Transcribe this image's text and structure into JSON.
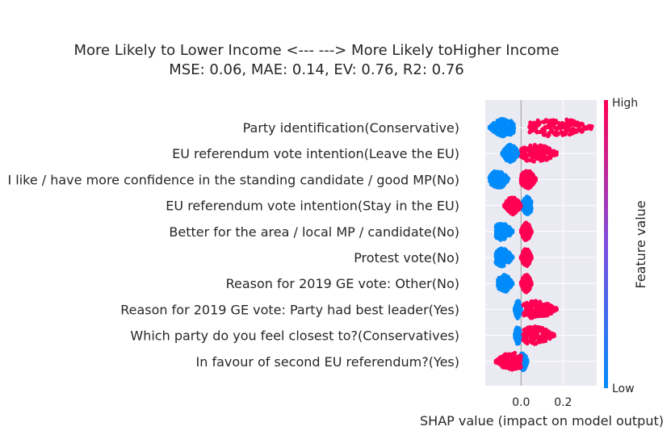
{
  "chart_data": {
    "type": "scatter",
    "title": "More Likely to Lower Income <---   ---> More Likely toHigher Income",
    "subtitle": "MSE: 0.06, MAE: 0.14, EV: 0.76, R2: 0.76",
    "xlabel": "SHAP value (impact on model output)",
    "xlim": [
      -0.17,
      0.36
    ],
    "xticks": [
      0.0,
      0.2
    ],
    "xtick_labels": [
      "0.0",
      "0.2"
    ],
    "grid": true,
    "colorbar": {
      "label": "Feature value",
      "high_label": "High",
      "low_label": "Low",
      "low_color": "#008bfb",
      "high_color": "#ff0052"
    },
    "features": [
      {
        "name": "Party identification(Conservative)",
        "low": {
          "range": [
            -0.15,
            -0.03
          ],
          "peak": -0.08
        },
        "high": {
          "range": [
            0.04,
            0.34
          ],
          "peak": 0.16
        }
      },
      {
        "name": "EU referendum vote intention(Leave the EU)",
        "low": {
          "range": [
            -0.09,
            -0.01
          ],
          "peak": -0.05
        },
        "high": {
          "range": [
            0.0,
            0.17
          ],
          "peak": 0.07
        }
      },
      {
        "name": "I like / have more confidence in the standing candidate / good MP(No)",
        "low": {
          "range": [
            -0.15,
            -0.06
          ],
          "peak": -0.11
        },
        "high": {
          "range": [
            0.0,
            0.07
          ],
          "peak": 0.03
        }
      },
      {
        "name": "EU referendum vote intention(Stay in the EU)",
        "low": {
          "range": [
            0.0,
            0.05
          ],
          "peak": 0.03
        },
        "high": {
          "range": [
            -0.08,
            0.0
          ],
          "peak": -0.04
        }
      },
      {
        "name": "Better for the area / local MP / candidate(No)",
        "low": {
          "range": [
            -0.12,
            -0.04
          ],
          "peak": -0.09
        },
        "high": {
          "range": [
            0.0,
            0.05
          ],
          "peak": 0.025
        }
      },
      {
        "name": "Protest vote(No)",
        "low": {
          "range": [
            -0.12,
            -0.04
          ],
          "peak": -0.09
        },
        "high": {
          "range": [
            0.0,
            0.05
          ],
          "peak": 0.025
        }
      },
      {
        "name": "Reason for 2019 GE vote: Other(No)",
        "low": {
          "range": [
            -0.11,
            -0.04
          ],
          "peak": -0.08
        },
        "high": {
          "range": [
            0.0,
            0.05
          ],
          "peak": 0.025
        }
      },
      {
        "name": "Reason for 2019 GE vote: Party had best leader(Yes)",
        "low": {
          "range": [
            -0.03,
            0.0
          ],
          "peak": -0.015
        },
        "high": {
          "range": [
            0.01,
            0.17
          ],
          "peak": 0.07
        }
      },
      {
        "name": "Which party do you feel closest to?(Conservatives)",
        "low": {
          "range": [
            -0.03,
            0.0
          ],
          "peak": -0.015
        },
        "high": {
          "range": [
            0.01,
            0.16
          ],
          "peak": 0.06
        }
      },
      {
        "name": "In favour of second EU referendum?(Yes)",
        "low": {
          "range": [
            -0.01,
            0.03
          ],
          "peak": 0.01
        },
        "high": {
          "range": [
            -0.12,
            0.0
          ],
          "peak": -0.04
        }
      }
    ]
  }
}
